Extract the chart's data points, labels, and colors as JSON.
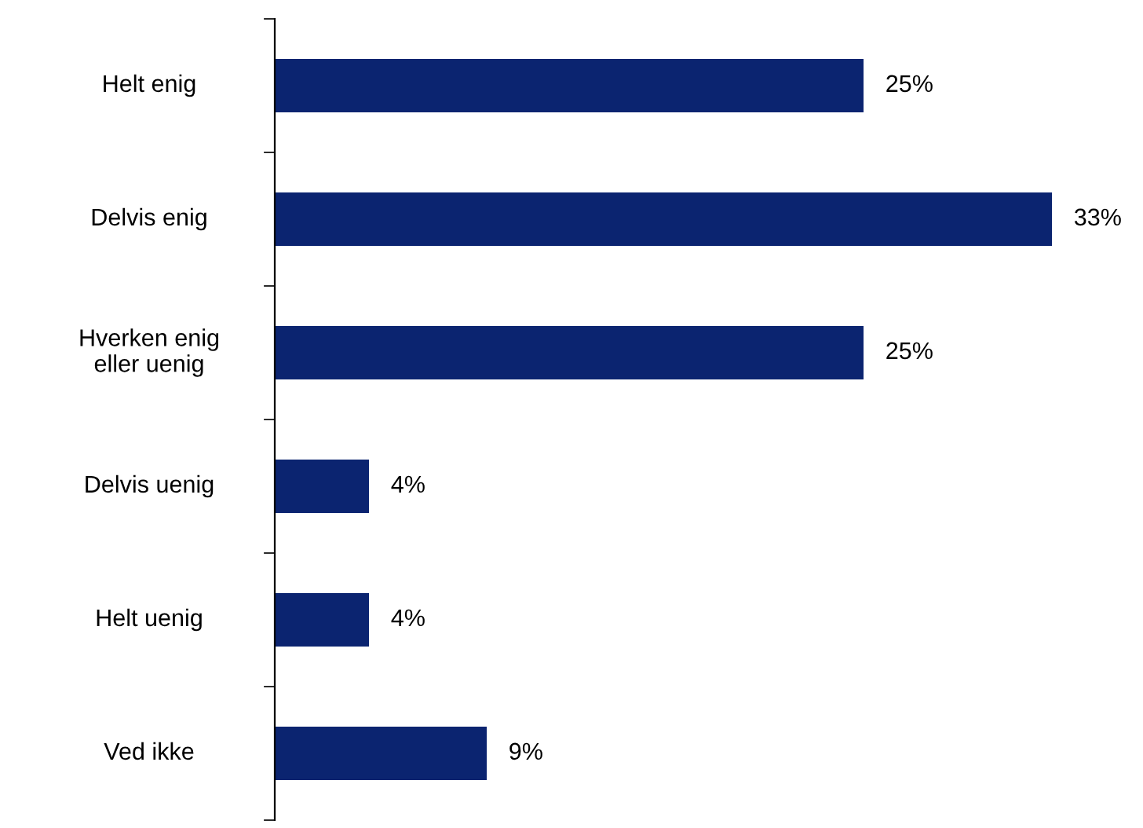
{
  "chart_data": {
    "type": "bar",
    "orientation": "horizontal",
    "categories": [
      "Helt enig",
      "Delvis enig",
      "Hverken enig\neller uenig",
      "Delvis uenig",
      "Helt uenig",
      "Ved ikke"
    ],
    "values": [
      25,
      33,
      25,
      4,
      4,
      9
    ],
    "color": "#0b2470",
    "value_labels": [
      "25%",
      "33%",
      "25%",
      "4%",
      "4%",
      "9%"
    ],
    "grid": false,
    "legend": false
  }
}
